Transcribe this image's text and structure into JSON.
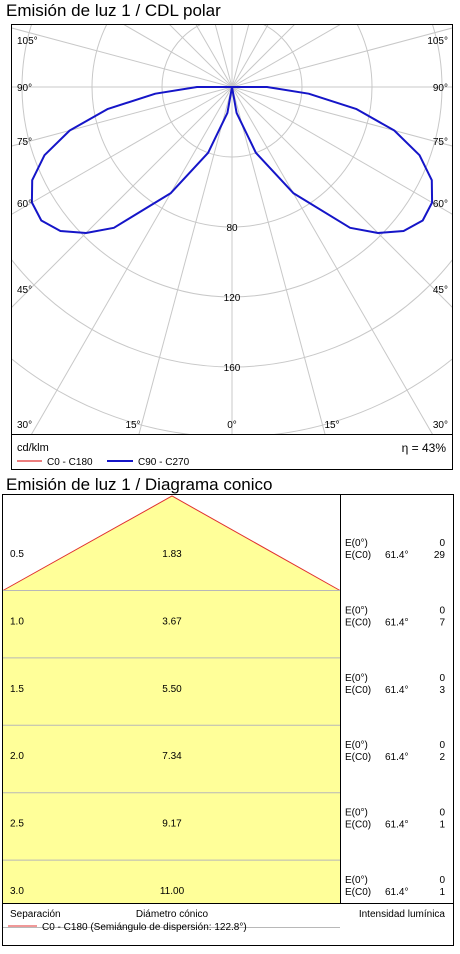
{
  "polar": {
    "title": "Emisión de luz 1 / CDL polar",
    "unit": "cd/klm",
    "efficiency": "η = 43%",
    "legend": [
      {
        "label": "C0 - C180",
        "color": "#e03030"
      },
      {
        "label": "C90 - C270",
        "color": "#1515c8"
      }
    ],
    "angle_labels_left": [
      "105°",
      "90°",
      "75°",
      "60°",
      "45°",
      "30°"
    ],
    "angle_labels_right": [
      "105°",
      "90°",
      "75°",
      "60°",
      "45°",
      "30°"
    ],
    "bottom_angle_labels": [
      "15°",
      "0°",
      "15°"
    ],
    "radial_labels": [
      "80",
      "120",
      "160"
    ]
  },
  "cone": {
    "title": "Emisión de luz 1 / Diagrama conico",
    "rows": [
      {
        "sep": "0.5",
        "diam": "1.83",
        "e0": "E(0°)",
        "ec0": "E(C0)",
        "ang": "61.4°",
        "v0": "0",
        "vc0": "29"
      },
      {
        "sep": "1.0",
        "diam": "3.67",
        "e0": "E(0°)",
        "ec0": "E(C0)",
        "ang": "61.4°",
        "v0": "0",
        "vc0": "7"
      },
      {
        "sep": "1.5",
        "diam": "5.50",
        "e0": "E(0°)",
        "ec0": "E(C0)",
        "ang": "61.4°",
        "v0": "0",
        "vc0": "3"
      },
      {
        "sep": "2.0",
        "diam": "7.34",
        "e0": "E(0°)",
        "ec0": "E(C0)",
        "ang": "61.4°",
        "v0": "0",
        "vc0": "2"
      },
      {
        "sep": "2.5",
        "diam": "9.17",
        "e0": "E(0°)",
        "ec0": "E(C0)",
        "ang": "61.4°",
        "v0": "0",
        "vc0": "1"
      },
      {
        "sep": "3.0",
        "diam": "11.00",
        "e0": "E(0°)",
        "ec0": "E(C0)",
        "ang": "61.4°",
        "v0": "0",
        "vc0": "1"
      }
    ],
    "footer": {
      "separation": "Separación",
      "diameter": "Diámetro cónico",
      "intensity": "Intensidad lumínica",
      "legend": "C0 - C180 (Semiángulo de dispersión: 122.8°)",
      "legend_color": "#e03030"
    },
    "fill_color": "#ffff99"
  },
  "chart_data": [
    {
      "type": "polar",
      "title": "Emisión de luz 1 / CDL polar",
      "unit": "cd/klm",
      "radial_ticks": [
        80,
        120,
        160
      ],
      "angle_ticks_deg": [
        0,
        15,
        30,
        45,
        60,
        75,
        90,
        105
      ],
      "series": [
        {
          "name": "C0 - C180",
          "color": "#e03030",
          "points": []
        },
        {
          "name": "C90 - C270",
          "color": "#1515c8",
          "points": [
            [
              0,
              0
            ],
            [
              10,
              15
            ],
            [
              20,
              40
            ],
            [
              30,
              70
            ],
            [
              40,
              105
            ],
            [
              45,
              118
            ],
            [
              50,
              128
            ],
            [
              55,
              133
            ],
            [
              60,
              132
            ],
            [
              65,
              126
            ],
            [
              70,
              114
            ],
            [
              75,
              96
            ],
            [
              80,
              72
            ],
            [
              85,
              44
            ],
            [
              90,
              20
            ],
            [
              92,
              0
            ]
          ]
        }
      ],
      "efficiency": "η = 43%"
    },
    {
      "type": "table",
      "title": "Emisión de luz 1 / Diagrama conico",
      "half_angle_deg": 61.4,
      "spread_half_angle_deg": 122.8,
      "columns": [
        "Separación",
        "Diámetro cónico",
        "E(0°)",
        "E(C0)"
      ],
      "rows": [
        [
          0.5,
          1.83,
          0,
          29
        ],
        [
          1.0,
          3.67,
          0,
          7
        ],
        [
          1.5,
          5.5,
          0,
          3
        ],
        [
          2.0,
          7.34,
          0,
          2
        ],
        [
          2.5,
          9.17,
          0,
          1
        ],
        [
          3.0,
          11.0,
          0,
          1
        ]
      ]
    }
  ]
}
